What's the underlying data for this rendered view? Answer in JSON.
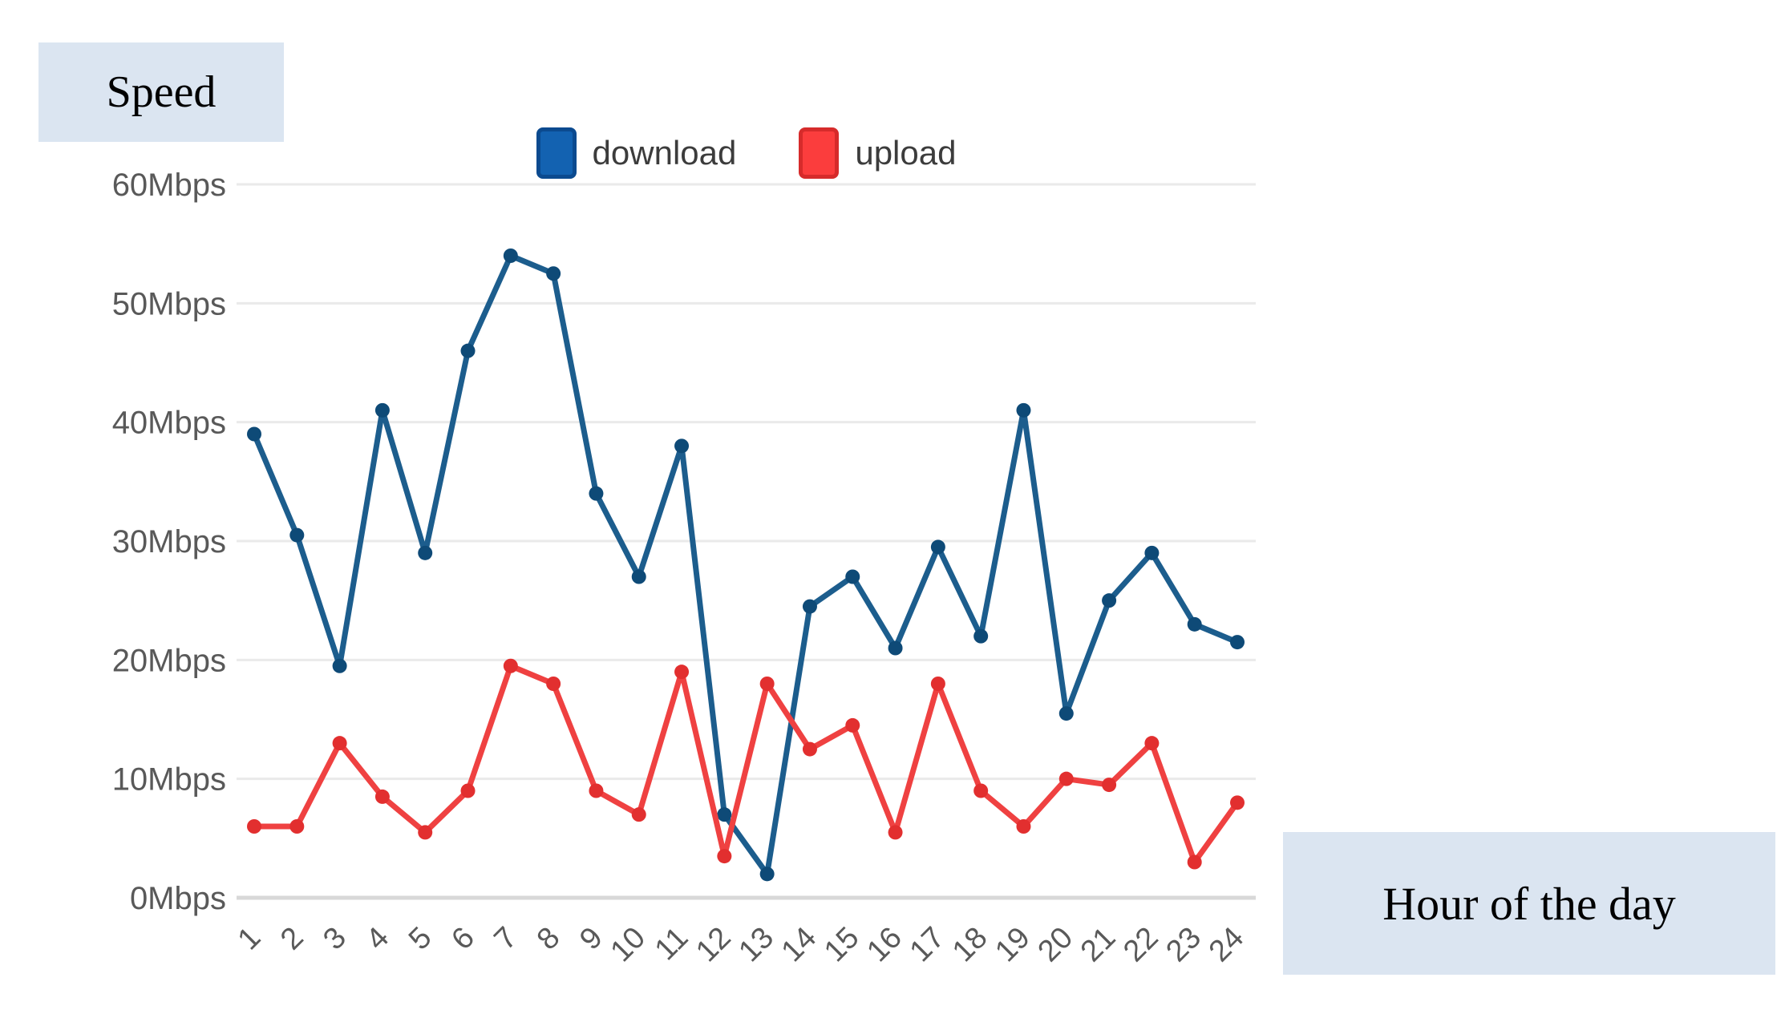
{
  "colors": {
    "background": "#ffffff",
    "gridline": "#eaeaea",
    "axis_line": "#d8d8d8",
    "tick_text": "#595959",
    "legend_text": "#3c3c3c",
    "label_box_bg": "#dbe5f1"
  },
  "chart_data": {
    "type": "line",
    "y_axis_box_label": "Speed",
    "x_axis_box_label": "Hour of the day",
    "y_unit": "Mbps",
    "ylim": [
      0,
      60
    ],
    "y_tick_step": 10,
    "y_tick_labels": [
      "0Mbps",
      "10Mbps",
      "20Mbps",
      "30Mbps",
      "40Mbps",
      "50Mbps",
      "60Mbps"
    ],
    "grid": true,
    "legend_position": "top-center",
    "x": [
      1,
      2,
      3,
      4,
      5,
      6,
      7,
      8,
      9,
      10,
      11,
      12,
      13,
      14,
      15,
      16,
      17,
      18,
      19,
      20,
      21,
      22,
      23,
      24
    ],
    "series": [
      {
        "name": "download",
        "line_color": "#1c5d8d",
        "point_color": "#0e4a77",
        "legend_color": "#1362b1",
        "legend_border": "#0b4a8f",
        "values": [
          39,
          30.5,
          19.5,
          41,
          29,
          46,
          54,
          52.5,
          34,
          27,
          38,
          7,
          2,
          24.5,
          27,
          21,
          29.5,
          22,
          41,
          15.5,
          25,
          29,
          23,
          21.5
        ]
      },
      {
        "name": "upload",
        "line_color": "#ef4141",
        "point_color": "#e22f2f",
        "legend_color": "#fb3d3d",
        "legend_border": "#d62b2b",
        "values": [
          6,
          6,
          13,
          8.5,
          5.5,
          9,
          19.5,
          18,
          9,
          7,
          19,
          3.5,
          18,
          12.5,
          14.5,
          5.5,
          18,
          9,
          6,
          10,
          9.5,
          13,
          3,
          8
        ]
      }
    ]
  }
}
